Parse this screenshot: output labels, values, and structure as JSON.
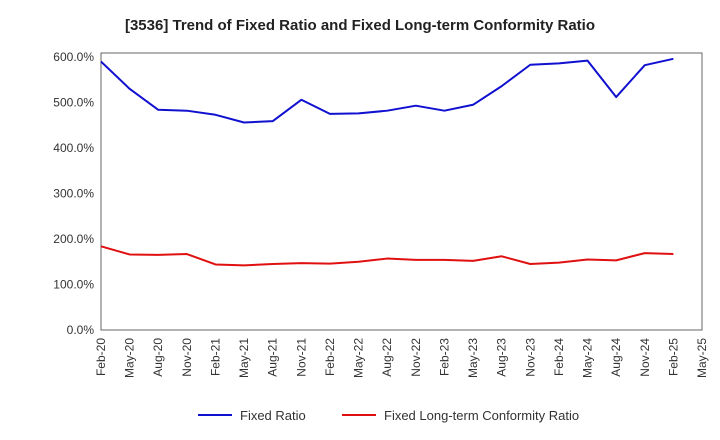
{
  "chart_data": {
    "type": "line",
    "title": "[3536]  Trend of Fixed Ratio and Fixed Long-term Conformity Ratio",
    "xlabel": "",
    "ylabel": "",
    "x_tick_labels": [
      "Feb-20",
      "May-20",
      "Aug-20",
      "Nov-20",
      "Feb-21",
      "May-21",
      "Aug-21",
      "Nov-21",
      "Feb-22",
      "May-22",
      "Aug-22",
      "Nov-22",
      "Feb-23",
      "May-23",
      "Aug-23",
      "Nov-23",
      "Feb-24",
      "May-24",
      "Aug-24",
      "Nov-24",
      "Feb-25",
      "May-25"
    ],
    "y_tick_labels": [
      "0.0%",
      "100.0%",
      "200.0%",
      "300.0%",
      "400.0%",
      "500.0%",
      "600.0%"
    ],
    "ylim": [
      0,
      600
    ],
    "grid": true,
    "legend_position": "bottom",
    "categories": [
      "Feb-20",
      "May-20",
      "Aug-20",
      "Nov-20",
      "Feb-21",
      "May-21",
      "Aug-21",
      "Nov-21",
      "Feb-22",
      "May-22",
      "Aug-22",
      "Nov-22",
      "Feb-23",
      "May-23",
      "Aug-23",
      "Nov-23",
      "Feb-24",
      "May-24",
      "Aug-24",
      "Nov-24",
      "Feb-25"
    ],
    "series": [
      {
        "name": "Fixed Ratio",
        "color": "#1010d0",
        "values": [
          590,
          530,
          484,
          482,
          473,
          456,
          459,
          506,
          475,
          476,
          482,
          493,
          482,
          495,
          536,
          583,
          586,
          592,
          512,
          582,
          596
        ]
      },
      {
        "name": "Fixed Long-term Conformity Ratio",
        "color": "#e01010",
        "values": [
          184,
          166,
          165,
          167,
          144,
          142,
          145,
          147,
          146,
          150,
          157,
          154,
          154,
          152,
          162,
          145,
          148,
          155,
          153,
          169,
          167
        ]
      }
    ]
  }
}
